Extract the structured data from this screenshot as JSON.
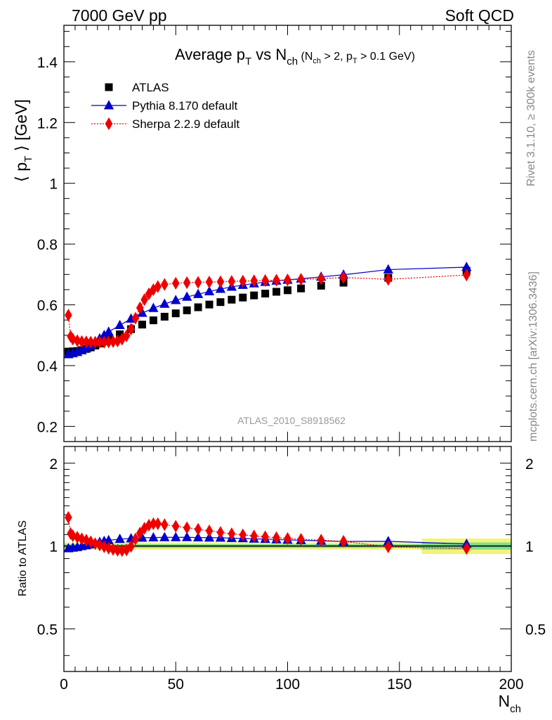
{
  "header": {
    "left": "7000 GeV pp",
    "right": "Soft QCD"
  },
  "side_labels": {
    "upper": "Rivet 3.1.10, ≥ 300k events",
    "lower": "mcplots.cern.ch [arXiv:1306.3436]"
  },
  "watermark": "ATLAS_2010_S8918562",
  "title": {
    "main": "Average p",
    "sub_T": "T",
    "vs": " vs N",
    "sub_ch": "ch",
    "cut_open": " (N",
    "cut_sub_ch": "ch",
    "cut_mid": " > 2, p",
    "cut_sub_T": "T",
    "cut_end": " > 0.1 GeV)"
  },
  "y_axis_label": {
    "open": "⟨ p",
    "sub": "T",
    "close": " ⟩ [GeV]"
  },
  "x_axis_label": {
    "main": "N",
    "sub": "ch"
  },
  "ratio_axis_label": "Ratio to ATLAS",
  "legend": [
    {
      "name": "ATLAS",
      "color": "#000000",
      "marker": "square"
    },
    {
      "name": "Pythia 8.170 default",
      "color": "#0000cc",
      "marker": "triangle"
    },
    {
      "name": "Sherpa 2.2.9 default",
      "color": "#ee0000",
      "marker": "diamond"
    }
  ],
  "chart_data": {
    "type": "scatter",
    "xlim": [
      0,
      200
    ],
    "ylim": [
      0.15,
      1.52
    ],
    "ratio_ylim": [
      0.35,
      2.3
    ],
    "x_ticks": [
      0,
      50,
      100,
      150,
      200
    ],
    "y_ticks": [
      0.2,
      0.4,
      0.6,
      0.8,
      1,
      1.2,
      1.4
    ],
    "y_tick_labels": [
      "0.2",
      "0.4",
      "0.6",
      "0.8",
      "1",
      "1.2",
      "1.4"
    ],
    "ratio_ticks": [
      0.5,
      1,
      2
    ],
    "ratio_tick_labels": [
      "0.5",
      "1",
      "2"
    ],
    "series": [
      {
        "name": "ATLAS",
        "x": [
          2,
          4,
          6,
          8,
          10,
          12,
          14,
          16,
          18,
          20,
          25,
          30,
          35,
          40,
          45,
          50,
          55,
          60,
          65,
          70,
          75,
          80,
          85,
          90,
          95,
          100,
          106,
          115,
          125,
          145,
          180
        ],
        "y": [
          0.446,
          0.447,
          0.448,
          0.451,
          0.455,
          0.46,
          0.466,
          0.473,
          0.48,
          0.487,
          0.503,
          0.52,
          0.535,
          0.549,
          0.561,
          0.572,
          0.582,
          0.592,
          0.601,
          0.609,
          0.617,
          0.624,
          0.631,
          0.637,
          0.643,
          0.648,
          0.654,
          0.663,
          0.673,
          0.689,
          0.712
        ]
      },
      {
        "name": "Pythia 8.170 default",
        "x": [
          2,
          4,
          6,
          8,
          10,
          12,
          14,
          16,
          18,
          20,
          25,
          30,
          35,
          40,
          45,
          50,
          55,
          60,
          65,
          70,
          75,
          80,
          85,
          90,
          95,
          100,
          106,
          115,
          125,
          145,
          180
        ],
        "y": [
          0.437,
          0.44,
          0.444,
          0.45,
          0.457,
          0.466,
          0.477,
          0.489,
          0.5,
          0.511,
          0.533,
          0.554,
          0.573,
          0.589,
          0.603,
          0.615,
          0.626,
          0.635,
          0.644,
          0.652,
          0.659,
          0.665,
          0.67,
          0.675,
          0.679,
          0.682,
          0.686,
          0.692,
          0.699,
          0.716,
          0.724
        ]
      },
      {
        "name": "Sherpa 2.2.9 default",
        "x": [
          2,
          3,
          4,
          6,
          8,
          10,
          12,
          14,
          16,
          18,
          20,
          22,
          24,
          26,
          28,
          30,
          32,
          34,
          36,
          38,
          40,
          42,
          45,
          50,
          55,
          60,
          65,
          70,
          75,
          80,
          85,
          90,
          95,
          100,
          106,
          115,
          125,
          145,
          180
        ],
        "y": [
          0.566,
          0.496,
          0.487,
          0.482,
          0.479,
          0.478,
          0.477,
          0.477,
          0.477,
          0.477,
          0.478,
          0.479,
          0.481,
          0.487,
          0.498,
          0.52,
          0.556,
          0.59,
          0.617,
          0.636,
          0.65,
          0.66,
          0.667,
          0.671,
          0.673,
          0.674,
          0.675,
          0.676,
          0.677,
          0.678,
          0.679,
          0.68,
          0.681,
          0.682,
          0.684,
          0.686,
          0.69,
          0.684,
          0.698
        ]
      }
    ],
    "ratio_series": [
      {
        "name": "Pythia 8.170 default",
        "x": [
          2,
          4,
          6,
          8,
          10,
          12,
          14,
          16,
          18,
          20,
          25,
          30,
          35,
          40,
          45,
          50,
          55,
          60,
          65,
          70,
          75,
          80,
          85,
          90,
          95,
          100,
          106,
          115,
          125,
          145,
          180
        ],
        "y": [
          0.98,
          0.985,
          0.99,
          0.998,
          1.005,
          1.013,
          1.024,
          1.034,
          1.042,
          1.049,
          1.06,
          1.065,
          1.071,
          1.073,
          1.075,
          1.075,
          1.076,
          1.073,
          1.072,
          1.071,
          1.068,
          1.066,
          1.062,
          1.06,
          1.056,
          1.052,
          1.049,
          1.044,
          1.039,
          1.04,
          1.017
        ]
      },
      {
        "name": "Sherpa 2.2.9 default",
        "x": [
          2,
          3,
          4,
          6,
          8,
          10,
          12,
          14,
          16,
          18,
          20,
          22,
          24,
          26,
          28,
          30,
          32,
          34,
          36,
          38,
          40,
          42,
          45,
          50,
          55,
          60,
          65,
          70,
          75,
          80,
          85,
          90,
          95,
          100,
          106,
          115,
          125,
          145,
          180
        ],
        "y": [
          1.27,
          1.11,
          1.09,
          1.076,
          1.062,
          1.05,
          1.036,
          1.02,
          1.008,
          0.994,
          0.982,
          0.972,
          0.965,
          0.963,
          0.968,
          0.997,
          1.06,
          1.115,
          1.16,
          1.19,
          1.205,
          1.205,
          1.195,
          1.18,
          1.165,
          1.15,
          1.135,
          1.12,
          1.108,
          1.098,
          1.088,
          1.08,
          1.072,
          1.065,
          1.058,
          1.05,
          1.04,
          0.993,
          0.98
        ]
      }
    ],
    "ratio_reference": 1.0,
    "ratio_uncertainty_band": [
      {
        "x0": 0,
        "x1": 160,
        "inner": [
          0.985,
          1.015
        ],
        "outer": [
          0.97,
          1.03
        ]
      },
      {
        "x0": 160,
        "x1": 200,
        "inner": [
          0.97,
          1.03
        ],
        "outer": [
          0.935,
          1.065
        ]
      }
    ]
  },
  "colors": {
    "data": "#000000",
    "pythia": "#0000cc",
    "sherpa": "#ee0000",
    "band_inner": "#7fe08a",
    "band_outer": "#f2f47a",
    "side_text": "#888888",
    "watermark": "#999999"
  }
}
